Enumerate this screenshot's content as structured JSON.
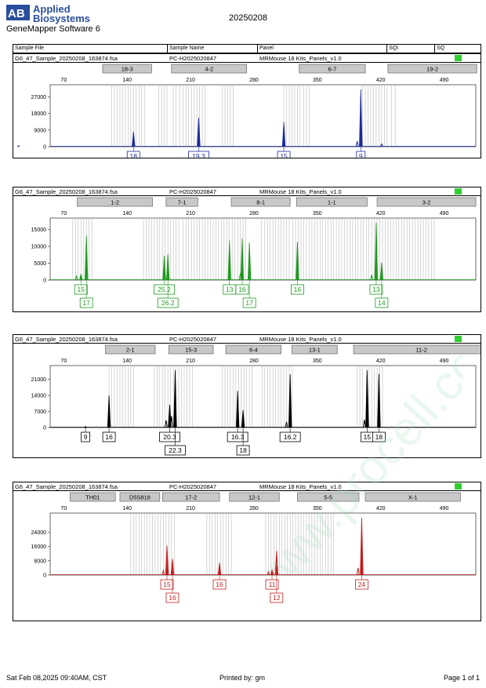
{
  "header": {
    "brand_top": "Applied",
    "brand_bottom": "Biosystems",
    "logo_letters": "AB",
    "app_name": "GeneMapper Software 6",
    "run_date": "20250208"
  },
  "columns": {
    "sample_file": "Sample File",
    "sample_name": "Sample Name",
    "panel": "Panel",
    "sqi": "SQI",
    "sq": "SQ"
  },
  "sample": {
    "file": "G6_47_Sample_20250208_163874.fsa",
    "name": "PC-H2025020847",
    "panel": "MRMouse 18 Kits_Panels_v1.0",
    "sq_color": "#2fcf2f"
  },
  "footer": {
    "timestamp": "Sat Feb 08,2025 09:40AM, CST",
    "printed_by": "Printed by: gm",
    "page": "Page 1 of 1"
  },
  "watermark": "www.procell.com.cn",
  "chart_data": [
    {
      "type": "line",
      "dye_color": "#1a2a9c",
      "x_ticks": [
        70,
        140,
        210,
        280,
        350,
        420,
        490
      ],
      "xlim": [
        55,
        525
      ],
      "ylim": [
        0,
        31000
      ],
      "y_ticks": [
        0,
        9000,
        18000,
        27000
      ],
      "markers": [
        {
          "label": "18-3",
          "start": 113,
          "end": 167
        },
        {
          "label": "4-2",
          "start": 189,
          "end": 272
        },
        {
          "label": "6-7",
          "start": 330,
          "end": 403
        },
        {
          "label": "19-2",
          "start": 428,
          "end": 526
        }
      ],
      "bins": [
        123,
        126,
        129,
        132,
        135,
        138,
        141,
        144,
        147,
        150,
        153,
        156,
        159,
        175,
        178,
        181,
        184,
        191,
        194,
        198,
        202,
        205,
        208,
        211,
        214,
        217,
        220,
        223,
        226,
        245,
        248,
        251,
        254,
        257,
        313,
        316,
        319,
        322,
        325,
        328,
        331,
        335,
        338,
        341,
        400,
        403,
        406,
        409,
        412,
        415,
        418,
        421,
        424,
        427,
        432,
        436
      ],
      "peaks": [
        {
          "x": 147,
          "y": 8200,
          "label": "18",
          "row": 0
        },
        {
          "x": 219,
          "y": 15800,
          "label": "19.3",
          "row": 0
        },
        {
          "x": 313,
          "y": 13300,
          "label": "15",
          "row": 0
        },
        {
          "x": 398,
          "y": 31000,
          "label": "9",
          "row": 0
        }
      ],
      "minor_peaks": [
        {
          "x": 394,
          "y": 3000
        },
        {
          "x": 421,
          "y": 1500
        },
        {
          "x": 20,
          "y": 500
        }
      ]
    },
    {
      "type": "line",
      "dye_color": "#1f9a1f",
      "x_ticks": [
        70,
        140,
        210,
        280,
        350,
        420,
        490
      ],
      "xlim": [
        55,
        525
      ],
      "ylim": [
        0,
        17000
      ],
      "y_ticks": [
        0,
        5000,
        10000,
        15000
      ],
      "markers": [
        {
          "label": "1-2",
          "start": 85,
          "end": 168
        },
        {
          "label": "7-1",
          "start": 183,
          "end": 218
        },
        {
          "label": "8-1",
          "start": 255,
          "end": 320
        },
        {
          "label": "1-1",
          "start": 327,
          "end": 405
        },
        {
          "label": "3-2",
          "start": 416,
          "end": 525
        }
      ],
      "bins": [
        80,
        83,
        86,
        89,
        92,
        95,
        98,
        101,
        158,
        161,
        164,
        167,
        170,
        173,
        176,
        179,
        182,
        185,
        188,
        191,
        194,
        197,
        202,
        205,
        208,
        211,
        214,
        217,
        220,
        223,
        226,
        229,
        232,
        235,
        238,
        241,
        244,
        247,
        250,
        253,
        256,
        259,
        262,
        265,
        268,
        271,
        288,
        292,
        295,
        298,
        301,
        304,
        307,
        310,
        313,
        316,
        319,
        323,
        326,
        329,
        332,
        335,
        338,
        341,
        344,
        347,
        350,
        353,
        356,
        359,
        362,
        365,
        368,
        371,
        374,
        377,
        380,
        383,
        386,
        389,
        392,
        395,
        398,
        401,
        404,
        407,
        410,
        413,
        416,
        419,
        422,
        425,
        428,
        431,
        434,
        437,
        440,
        443,
        446,
        449,
        452,
        455,
        458,
        461,
        464,
        467,
        470,
        473,
        476,
        479
      ],
      "peaks": [
        {
          "x": 89,
          "y": 1800,
          "label": "15",
          "row": 0
        },
        {
          "x": 95,
          "y": 13300,
          "label": "17",
          "row": 1
        },
        {
          "x": 181,
          "y": 7200,
          "label": "25.2",
          "row": 0
        },
        {
          "x": 185,
          "y": 7700,
          "label": "26.2",
          "row": 1
        },
        {
          "x": 253,
          "y": 11800,
          "label": "13",
          "row": 0
        },
        {
          "x": 267,
          "y": 12300,
          "label": "16",
          "row": 0
        },
        {
          "x": 275,
          "y": 11200,
          "label": "17",
          "row": 1
        },
        {
          "x": 328,
          "y": 11300,
          "label": "16",
          "row": 0
        },
        {
          "x": 415,
          "y": 17000,
          "label": "13",
          "row": 0
        },
        {
          "x": 421,
          "y": 5200,
          "label": "14",
          "row": 1
        }
      ],
      "minor_peaks": [
        {
          "x": 84,
          "y": 1200
        },
        {
          "x": 265,
          "y": 2000
        },
        {
          "x": 410,
          "y": 1600
        }
      ]
    },
    {
      "type": "line",
      "dye_color": "#000000",
      "x_ticks": [
        70,
        140,
        210,
        280,
        350,
        420,
        490
      ],
      "xlim": [
        55,
        525
      ],
      "ylim": [
        0,
        25000
      ],
      "y_ticks": [
        0,
        7000,
        14000,
        21000
      ],
      "markers": [
        {
          "label": "2-1",
          "start": 116,
          "end": 171
        },
        {
          "label": "15-3",
          "start": 186,
          "end": 235
        },
        {
          "label": "6-4",
          "start": 249,
          "end": 310
        },
        {
          "label": "13-1",
          "start": 322,
          "end": 372
        },
        {
          "label": "11-2",
          "start": 390,
          "end": 540
        }
      ],
      "bins": [
        120,
        123,
        126,
        129,
        132,
        135,
        138,
        141,
        144,
        147,
        170,
        173,
        176,
        179,
        182,
        185,
        188,
        191,
        194,
        197,
        200,
        203,
        206,
        209,
        212,
        245,
        248,
        251,
        254,
        257,
        260,
        263,
        266,
        269,
        272,
        275,
        278,
        289,
        292,
        295,
        298,
        301,
        304,
        307,
        310,
        313,
        316,
        319,
        322,
        394,
        397,
        400,
        404,
        407,
        410,
        413,
        416,
        419,
        422
      ],
      "peaks": [
        {
          "x": 94,
          "y": 500,
          "label": "9",
          "row": 0
        },
        {
          "x": 120,
          "y": 14000,
          "label": "16",
          "row": 0
        },
        {
          "x": 187,
          "y": 10000,
          "label": "20.3",
          "row": 0
        },
        {
          "x": 193,
          "y": 25000,
          "label": "22.3",
          "row": 1
        },
        {
          "x": 262,
          "y": 16000,
          "label": "16.3",
          "row": 0
        },
        {
          "x": 268,
          "y": 7600,
          "label": "18",
          "row": 1
        },
        {
          "x": 320,
          "y": 23300,
          "label": "16.2",
          "row": 0
        },
        {
          "x": 405,
          "y": 25000,
          "label": "15",
          "row": 0
        },
        {
          "x": 418,
          "y": 23500,
          "label": "18",
          "row": 0
        }
      ],
      "minor_peaks": [
        {
          "x": 183,
          "y": 3200
        },
        {
          "x": 189,
          "y": 5000
        },
        {
          "x": 316,
          "y": 2500
        },
        {
          "x": 402,
          "y": 3400
        }
      ]
    },
    {
      "type": "line",
      "dye_color": "#c21e1e",
      "x_ticks": [
        70,
        140,
        210,
        280,
        350,
        420,
        490
      ],
      "xlim": [
        55,
        525
      ],
      "ylim": [
        0,
        32000
      ],
      "y_ticks": [
        0,
        8000,
        16000,
        24000
      ],
      "markers": [
        {
          "label": "TH01",
          "start": 77,
          "end": 127
        },
        {
          "label": "D5S818",
          "start": 132,
          "end": 176
        },
        {
          "label": "17-2",
          "start": 179,
          "end": 242
        },
        {
          "label": "12-1",
          "start": 253,
          "end": 308
        },
        {
          "label": "5-5",
          "start": 328,
          "end": 396
        },
        {
          "label": "X-1",
          "start": 403,
          "end": 508
        }
      ],
      "bins": [
        144,
        147,
        150,
        153,
        156,
        159,
        162,
        165,
        168,
        171,
        174,
        177,
        180,
        183,
        186,
        189,
        192,
        228,
        231,
        234,
        237,
        240,
        243,
        246,
        249,
        252,
        255,
        293,
        296,
        299,
        302,
        305,
        308,
        311,
        314,
        317,
        320,
        323,
        326,
        329,
        332,
        335,
        338,
        341,
        344,
        347,
        350,
        353,
        356,
        359,
        362,
        365,
        368
      ],
      "peaks": [
        {
          "x": 184,
          "y": 16500,
          "label": "15",
          "row": 0
        },
        {
          "x": 190,
          "y": 9000,
          "label": "16",
          "row": 1
        },
        {
          "x": 242,
          "y": 6800,
          "label": "16",
          "row": 0
        },
        {
          "x": 300,
          "y": 3000,
          "label": "11",
          "row": 0
        },
        {
          "x": 305,
          "y": 13500,
          "label": "12",
          "row": 1
        },
        {
          "x": 399,
          "y": 32000,
          "label": "24",
          "row": 0
        }
      ],
      "minor_peaks": [
        {
          "x": 180,
          "y": 2500
        },
        {
          "x": 296,
          "y": 1800
        },
        {
          "x": 395,
          "y": 4000
        }
      ]
    }
  ]
}
